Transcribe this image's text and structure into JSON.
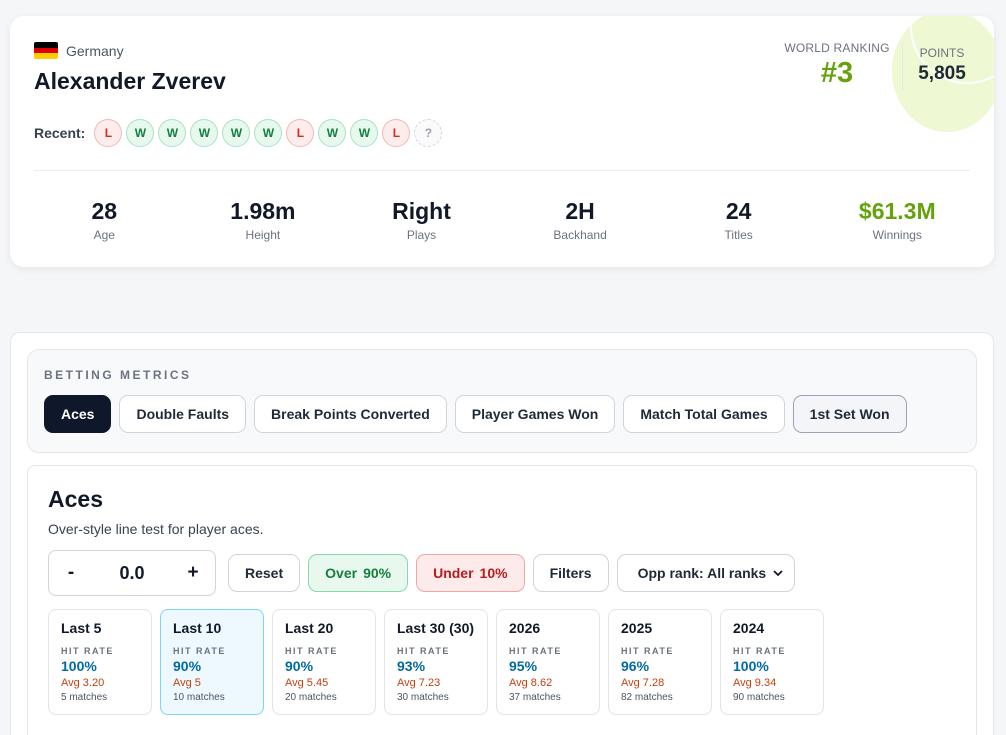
{
  "player": {
    "country": "Germany",
    "flag_colors": [
      "#000000",
      "#dd0000",
      "#ffce00"
    ],
    "name": "Alexander Zverev",
    "recent_label": "Recent:",
    "recent": [
      "L",
      "W",
      "W",
      "W",
      "W",
      "W",
      "L",
      "W",
      "W",
      "L",
      "?"
    ],
    "ranking_label": "WORLD RANKING",
    "ranking": "#3",
    "points_label": "POINTS",
    "points": "5,805",
    "stats": [
      {
        "value": "28",
        "label": "Age"
      },
      {
        "value": "1.98m",
        "label": "Height"
      },
      {
        "value": "Right",
        "label": "Plays"
      },
      {
        "value": "2H",
        "label": "Backhand"
      },
      {
        "value": "24",
        "label": "Titles"
      },
      {
        "value": "$61.3M",
        "label": "Winnings"
      }
    ]
  },
  "metrics": {
    "title": "BETTING METRICS",
    "tabs": [
      "Aces",
      "Double Faults",
      "Break Points Converted",
      "Player Games Won",
      "Match Total Games",
      "1st Set Won"
    ],
    "active_tab": "Aces"
  },
  "aces": {
    "title": "Aces",
    "subtitle": "Over-style line test for player aces.",
    "stepper": {
      "minus": "-",
      "value": "0.0",
      "plus": "+"
    },
    "reset": "Reset",
    "over": {
      "label": "Over",
      "value": "90%"
    },
    "under": {
      "label": "Under",
      "value": "10%"
    },
    "filters": "Filters",
    "opp_rank": "Opp rank: All ranks",
    "windows": [
      {
        "name": "Last 5",
        "hr_label": "HIT RATE",
        "rate": "100%",
        "avg": "Avg 3.20",
        "matches": "5 matches"
      },
      {
        "name": "Last 10",
        "hr_label": "HIT RATE",
        "rate": "90%",
        "avg": "Avg 5",
        "matches": "10 matches"
      },
      {
        "name": "Last 20",
        "hr_label": "HIT RATE",
        "rate": "90%",
        "avg": "Avg 5.45",
        "matches": "20 matches"
      },
      {
        "name": "Last 30 (30)",
        "hr_label": "HIT RATE",
        "rate": "93%",
        "avg": "Avg 7.23",
        "matches": "30 matches"
      },
      {
        "name": "2026",
        "hr_label": "HIT RATE",
        "rate": "95%",
        "avg": "Avg 8.62",
        "matches": "37 matches"
      },
      {
        "name": "2025",
        "hr_label": "HIT RATE",
        "rate": "96%",
        "avg": "Avg 7.28",
        "matches": "82 matches"
      },
      {
        "name": "2024",
        "hr_label": "HIT RATE",
        "rate": "100%",
        "avg": "Avg 9.34",
        "matches": "90 matches"
      }
    ],
    "active_window": "Last 10"
  }
}
